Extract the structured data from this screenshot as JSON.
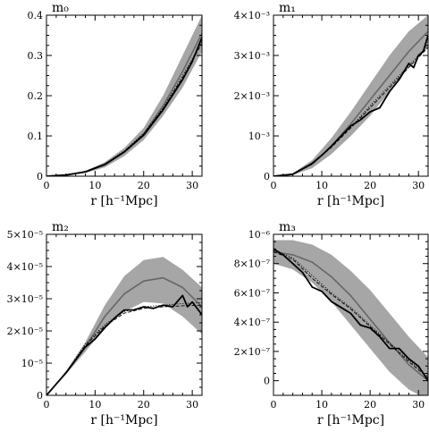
{
  "chart_data": [
    {
      "type": "line",
      "title": "m₀",
      "xlabel": "r [h⁻¹Mpc]",
      "ylabel": "",
      "xlim": [
        0,
        32
      ],
      "ylim": [
        0,
        0.4
      ],
      "xticks": [
        0,
        10,
        20,
        30
      ],
      "yticks": [
        {
          "value": 0,
          "label": "0"
        },
        {
          "value": 0.1,
          "label": "0.1"
        },
        {
          "value": 0.2,
          "label": "0.2"
        },
        {
          "value": 0.3,
          "label": "0.3"
        },
        {
          "value": 0.4,
          "label": "0.4"
        }
      ],
      "band": {
        "x": [
          0,
          4,
          8,
          12,
          16,
          20,
          24,
          28,
          32
        ],
        "lower": [
          0,
          0.002,
          0.008,
          0.022,
          0.05,
          0.09,
          0.15,
          0.22,
          0.31
        ],
        "upper": [
          0,
          0.003,
          0.013,
          0.035,
          0.07,
          0.12,
          0.2,
          0.3,
          0.4
        ]
      },
      "series": [
        {
          "style": "grey-model",
          "x": [
            0,
            4,
            8,
            12,
            16,
            20,
            24,
            28,
            32
          ],
          "values": [
            0,
            0.003,
            0.011,
            0.028,
            0.06,
            0.105,
            0.175,
            0.26,
            0.355
          ]
        },
        {
          "style": "solid-black",
          "x": [
            0,
            4,
            8,
            12,
            16,
            20,
            24,
            28,
            30,
            32
          ],
          "values": [
            0,
            0.003,
            0.011,
            0.029,
            0.06,
            0.102,
            0.165,
            0.24,
            0.285,
            0.345
          ]
        },
        {
          "style": "dashed",
          "x": [
            0,
            4,
            8,
            12,
            16,
            20,
            24,
            28,
            32
          ],
          "values": [
            0,
            0.003,
            0.012,
            0.03,
            0.062,
            0.105,
            0.168,
            0.245,
            0.33
          ]
        },
        {
          "style": "dotted",
          "x": [
            0,
            4,
            8,
            12,
            16,
            20,
            24,
            28,
            32
          ],
          "values": [
            0,
            0.003,
            0.012,
            0.031,
            0.063,
            0.107,
            0.17,
            0.25,
            0.335
          ]
        }
      ]
    },
    {
      "type": "line",
      "title": "m₁",
      "xlabel": "",
      "ylabel": "",
      "xlim": [
        0,
        32
      ],
      "ylim": [
        0,
        0.004
      ],
      "xticks": [
        0,
        10,
        20,
        30
      ],
      "yticks": [
        {
          "value": 0,
          "label": "0"
        },
        {
          "value": 0.001,
          "label": "10⁻³"
        },
        {
          "value": 0.002,
          "label": "2×10⁻³"
        },
        {
          "value": 0.003,
          "label": "3×10⁻³"
        },
        {
          "value": 0.004,
          "label": "4×10⁻³"
        }
      ],
      "band": {
        "x": [
          0,
          4,
          8,
          12,
          16,
          20,
          24,
          28,
          32
        ],
        "lower": [
          0,
          3e-05,
          0.0002,
          0.00055,
          0.001,
          0.0015,
          0.0021,
          0.0027,
          0.0032
        ],
        "upper": [
          0,
          7e-05,
          0.0004,
          0.00095,
          0.0016,
          0.0023,
          0.003,
          0.0036,
          0.004
        ]
      },
      "series": [
        {
          "style": "grey-model",
          "x": [
            0,
            4,
            8,
            12,
            16,
            20,
            24,
            28,
            32
          ],
          "values": [
            0,
            5e-05,
            0.0003,
            0.00075,
            0.0013,
            0.0019,
            0.0025,
            0.0031,
            0.0036
          ]
        },
        {
          "style": "solid-black",
          "x": [
            0,
            4,
            8,
            10,
            12,
            14,
            16,
            18,
            20,
            22,
            24,
            26,
            28,
            29,
            30,
            31,
            32
          ],
          "values": [
            0,
            5e-05,
            0.00032,
            0.00052,
            0.00075,
            0.001,
            0.00125,
            0.0014,
            0.0016,
            0.0017,
            0.0021,
            0.0024,
            0.0028,
            0.0027,
            0.003,
            0.0031,
            0.0035
          ]
        },
        {
          "style": "dashed",
          "x": [
            0,
            4,
            8,
            12,
            16,
            20,
            24,
            28,
            32
          ],
          "values": [
            0,
            5e-05,
            0.0003,
            0.00072,
            0.0012,
            0.0017,
            0.0022,
            0.0027,
            0.0032
          ]
        },
        {
          "style": "dotted",
          "x": [
            0,
            4,
            8,
            12,
            16,
            20,
            24,
            28,
            32
          ],
          "values": [
            0,
            5e-05,
            0.00031,
            0.00074,
            0.00122,
            0.00175,
            0.00225,
            0.00275,
            0.00325
          ]
        }
      ]
    },
    {
      "type": "line",
      "title": "m₂",
      "xlabel": "r [h⁻¹Mpc]",
      "ylabel": "",
      "xlim": [
        0,
        32
      ],
      "ylim": [
        0,
        5e-05
      ],
      "xticks": [
        0,
        10,
        20,
        30
      ],
      "yticks": [
        {
          "value": 0,
          "label": "0"
        },
        {
          "value": 1e-05,
          "label": "10⁻⁵"
        },
        {
          "value": 2e-05,
          "label": "2×10⁻⁵"
        },
        {
          "value": 3e-05,
          "label": "3×10⁻⁵"
        },
        {
          "value": 4e-05,
          "label": "4×10⁻⁵"
        },
        {
          "value": 5e-05,
          "label": "5×10⁻⁵"
        }
      ],
      "band": {
        "x": [
          0,
          4,
          8,
          12,
          16,
          20,
          24,
          28,
          32
        ],
        "lower": [
          0,
          6.5e-06,
          1.35e-05,
          2.1e-05,
          2.6e-05,
          2.9e-05,
          2.85e-05,
          2.45e-05,
          1.9e-05
        ],
        "upper": [
          0,
          7.5e-06,
          1.65e-05,
          2.8e-05,
          3.7e-05,
          4.2e-05,
          4.3e-05,
          3.9e-05,
          3.35e-05
        ]
      },
      "series": [
        {
          "style": "grey-model",
          "x": [
            0,
            4,
            8,
            12,
            16,
            20,
            24,
            28,
            32
          ],
          "values": [
            0,
            7e-06,
            1.5e-05,
            2.45e-05,
            3.15e-05,
            3.55e-05,
            3.65e-05,
            3.35e-05,
            2.75e-05
          ]
        },
        {
          "style": "solid-black",
          "x": [
            0,
            4,
            8,
            10,
            12,
            14,
            16,
            18,
            20,
            22,
            24,
            26,
            28,
            29,
            30,
            32
          ],
          "values": [
            0,
            7e-06,
            1.5e-05,
            1.75e-05,
            2.1e-05,
            2.4e-05,
            2.65e-05,
            2.65e-05,
            2.75e-05,
            2.7e-05,
            2.8e-05,
            2.75e-05,
            3.1e-05,
            2.75e-05,
            2.9e-05,
            2.5e-05
          ]
        },
        {
          "style": "dashed",
          "x": [
            0,
            4,
            8,
            12,
            16,
            20,
            24,
            28,
            32
          ],
          "values": [
            0,
            7e-06,
            1.55e-05,
            2.15e-05,
            2.55e-05,
            2.7e-05,
            2.75e-05,
            2.78e-05,
            2.8e-05
          ]
        },
        {
          "style": "dotted",
          "x": [
            0,
            4,
            8,
            12,
            16,
            20,
            24,
            28,
            32
          ],
          "values": [
            0,
            7e-06,
            1.6e-05,
            2.2e-05,
            2.6e-05,
            2.75e-05,
            2.8e-05,
            2.85e-05,
            2.88e-05
          ]
        }
      ]
    },
    {
      "type": "line",
      "title": "m₃",
      "xlabel": "r [h⁻¹Mpc]",
      "ylabel": "",
      "xlim": [
        0,
        32
      ],
      "ylim": [
        -1e-07,
        1e-06
      ],
      "xticks": [
        0,
        10,
        20,
        30
      ],
      "yticks": [
        {
          "value": 0,
          "label": "0"
        },
        {
          "value": 2e-07,
          "label": "2×10⁻⁷"
        },
        {
          "value": 4e-07,
          "label": "4×10⁻⁷"
        },
        {
          "value": 6e-07,
          "label": "6×10⁻⁷"
        },
        {
          "value": 8e-07,
          "label": "8×10⁻⁷"
        },
        {
          "value": 1e-06,
          "label": "10⁻⁶"
        }
      ],
      "band": {
        "x": [
          0,
          4,
          8,
          12,
          16,
          20,
          24,
          28,
          32
        ],
        "lower": [
          8e-07,
          7.6e-07,
          6.7e-07,
          5.4e-07,
          3.8e-07,
          2.2e-07,
          6e-08,
          -6e-08,
          -1.3e-07
        ],
        "upper": [
          9.6e-07,
          9.6e-07,
          9.3e-07,
          8.6e-07,
          7.5e-07,
          6.2e-07,
          4.6e-07,
          3e-07,
          1.6e-07
        ]
      },
      "series": [
        {
          "style": "grey-model",
          "x": [
            0,
            4,
            8,
            12,
            16,
            20,
            24,
            28,
            32
          ],
          "values": [
            8.8e-07,
            8.6e-07,
            8.1e-07,
            7.1e-07,
            5.8e-07,
            4.2e-07,
            2.6e-07,
            1.1e-07,
            0
          ]
        },
        {
          "style": "solid-black",
          "x": [
            0,
            2,
            4,
            6,
            8,
            10,
            12,
            14,
            16,
            18,
            20,
            22,
            24,
            26,
            28,
            30,
            32
          ],
          "values": [
            9e-07,
            8.6e-07,
            8e-07,
            7.4e-07,
            6.4e-07,
            6.1e-07,
            5.4e-07,
            5e-07,
            4.6e-07,
            3.8e-07,
            3.6e-07,
            3e-07,
            2.2e-07,
            2.2e-07,
            1.5e-07,
            1e-07,
            0
          ]
        },
        {
          "style": "dashed",
          "x": [
            0,
            4,
            8,
            12,
            16,
            20,
            24,
            28,
            32
          ],
          "values": [
            8.8e-07,
            8.3e-07,
            7e-07,
            5.9e-07,
            4.9e-07,
            3.7e-07,
            2.5e-07,
            1.3e-07,
            2e-08
          ]
        },
        {
          "style": "dotted",
          "x": [
            0,
            4,
            8,
            12,
            16,
            20,
            24,
            28,
            32
          ],
          "values": [
            8.9e-07,
            8.4e-07,
            7.2e-07,
            6e-07,
            5e-07,
            3.8e-07,
            2.6e-07,
            1.4e-07,
            3e-08
          ]
        }
      ]
    }
  ]
}
